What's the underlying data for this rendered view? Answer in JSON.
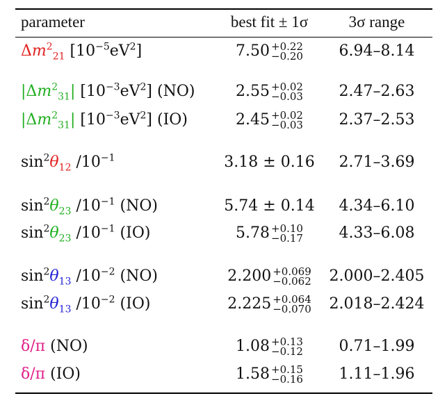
{
  "header": {
    "parameter": "parameter",
    "best_fit": "best fit ± 1σ",
    "range": "3σ range"
  },
  "rows": [
    {
      "sym_pre": "Δ",
      "sym_var": "m",
      "sym_sup": "2",
      "sym_sub": "21",
      "abs": false,
      "unit_pre": "[10",
      "unit_exp": "−5",
      "unit_post": "eV",
      "unit_sq": "2",
      "unit_close": "]",
      "ordering": "",
      "central": "7.50",
      "up": "+0.22",
      "down": "−0.20",
      "range": "6.94–8.14"
    },
    {
      "sym_pre": "|Δ",
      "sym_var": "m",
      "sym_sup": "2",
      "sym_sub": "31",
      "abs": true,
      "unit_pre": "[10",
      "unit_exp": "−3",
      "unit_post": "eV",
      "unit_sq": "2",
      "unit_close": "]",
      "ordering": "(NO)",
      "central": "2.55",
      "up": "+0.02",
      "down": "−0.03",
      "range": "2.47–2.63"
    },
    {
      "sym_pre": "|Δ",
      "sym_var": "m",
      "sym_sup": "2",
      "sym_sub": "31",
      "abs": true,
      "unit_pre": "[10",
      "unit_exp": "−3",
      "unit_post": "eV",
      "unit_sq": "2",
      "unit_close": "]",
      "ordering": "(IO)",
      "central": "2.45",
      "up": "+0.02",
      "down": "−0.03",
      "range": "2.37–2.53"
    },
    {
      "fn": "sin",
      "fn_sup": "2",
      "angle": "θ",
      "angle_sub": "12",
      "scale_pre": "/10",
      "scale_exp": "−1",
      "ordering": "",
      "value": "3.18 ± 0.16",
      "range": "2.71–3.69"
    },
    {
      "fn": "sin",
      "fn_sup": "2",
      "angle": "θ",
      "angle_sub": "23",
      "scale_pre": "/10",
      "scale_exp": "−1",
      "ordering": "(NO)",
      "value": "5.74 ± 0.14",
      "range": "4.34–6.10"
    },
    {
      "fn": "sin",
      "fn_sup": "2",
      "angle": "θ",
      "angle_sub": "23",
      "scale_pre": "/10",
      "scale_exp": "−1",
      "ordering": "(IO)",
      "central": "5.78",
      "up": "+0.10",
      "down": "−0.17",
      "range": "4.33–6.08"
    },
    {
      "fn": "sin",
      "fn_sup": "2",
      "angle": "θ",
      "angle_sub": "13",
      "scale_pre": "/10",
      "scale_exp": "−2",
      "ordering": "(NO)",
      "central": "2.200",
      "up": "+0.069",
      "down": "−0.062",
      "range": "2.000–2.405"
    },
    {
      "fn": "sin",
      "fn_sup": "2",
      "angle": "θ",
      "angle_sub": "13",
      "scale_pre": "/10",
      "scale_exp": "−2",
      "ordering": "(IO)",
      "central": "2.225",
      "up": "+0.064",
      "down": "−0.070",
      "range": "2.018–2.424"
    },
    {
      "delta": "δ/π",
      "ordering": "(NO)",
      "central": "1.08",
      "up": "+0.13",
      "down": "−0.12",
      "range": "0.71–1.99"
    },
    {
      "delta": "δ/π",
      "ordering": "(IO)",
      "central": "1.58",
      "up": "+0.15",
      "down": "−0.16",
      "range": "1.11–1.96"
    }
  ],
  "colors": {
    "solar": "#e0201e",
    "atmospheric": "#1fae1f",
    "reactor": "#2020d8",
    "cp_phase": "#e0208a"
  }
}
